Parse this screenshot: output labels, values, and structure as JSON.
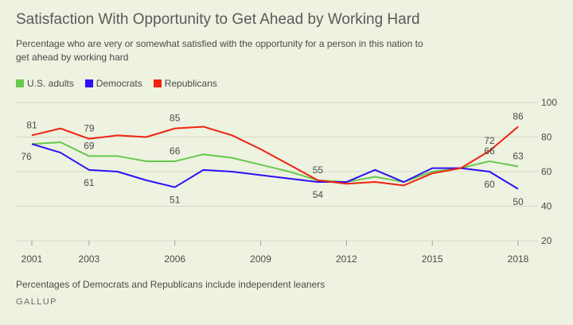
{
  "title": "Satisfaction With Opportunity to Get Ahead by Working Hard",
  "subtitle": "Percentage who are very or somewhat satisfied with the opportunity for a person in this nation to get ahead by working hard",
  "footnote": "Percentages of Democrats and Republicans include independent leaners",
  "source": "GALLUP",
  "colors": {
    "us_adults": "#67c84e",
    "democrats": "#2d10f5",
    "republicans": "#ee2410",
    "grid": "#d6d9c8",
    "text": "#4b4b4b"
  },
  "chart_data": {
    "type": "line",
    "title": "Satisfaction With Opportunity to Get Ahead by Working Hard",
    "xlabel": "",
    "ylabel": "",
    "x": [
      2001,
      2002,
      2003,
      2004,
      2005,
      2006,
      2007,
      2008,
      2009,
      2010,
      2011,
      2012,
      2013,
      2014,
      2015,
      2016,
      2017,
      2018
    ],
    "x_ticks": [
      2001,
      2003,
      2006,
      2009,
      2012,
      2015,
      2018
    ],
    "y_ticks": [
      20,
      40,
      60,
      80,
      100
    ],
    "ylim": [
      20,
      100
    ],
    "xlim": [
      2001,
      2018
    ],
    "grid": true,
    "legend_position": "top-left",
    "series": [
      {
        "key": "us_adults",
        "name": "U.S. adults",
        "color": "#67c84e",
        "values": [
          76,
          77,
          69,
          69,
          66,
          66,
          70,
          68,
          64,
          60,
          55,
          54,
          57,
          54,
          60,
          62,
          66,
          63
        ]
      },
      {
        "key": "democrats",
        "name": "Democrats",
        "color": "#2d10f5",
        "values": [
          76,
          71,
          61,
          60,
          55,
          51,
          61,
          60,
          58,
          56,
          54,
          54,
          61,
          54,
          62,
          62,
          60,
          50
        ]
      },
      {
        "key": "republicans",
        "name": "Republicans",
        "color": "#ee2410",
        "values": [
          81,
          85,
          79,
          81,
          80,
          85,
          86,
          81,
          73,
          64,
          55,
          53,
          54,
          52,
          59,
          62,
          72,
          86
        ]
      }
    ],
    "annotations": [
      {
        "label": "81",
        "x": 2001,
        "series": "republicans",
        "place": "above"
      },
      {
        "label": "76",
        "x": 2001,
        "series": "us_adults",
        "place": "below-left"
      },
      {
        "label": "79",
        "x": 2003,
        "series": "republicans",
        "place": "above"
      },
      {
        "label": "69",
        "x": 2003,
        "series": "us_adults",
        "place": "above"
      },
      {
        "label": "61",
        "x": 2003,
        "series": "democrats",
        "place": "below"
      },
      {
        "label": "85",
        "x": 2006,
        "series": "republicans",
        "place": "above"
      },
      {
        "label": "66",
        "x": 2006,
        "series": "us_adults",
        "place": "above"
      },
      {
        "label": "51",
        "x": 2006,
        "series": "democrats",
        "place": "below"
      },
      {
        "label": "55",
        "x": 2011,
        "series": "republicans",
        "place": "above"
      },
      {
        "label": "54",
        "x": 2011,
        "series": "democrats",
        "place": "below"
      },
      {
        "label": "72",
        "x": 2017,
        "series": "republicans",
        "place": "above"
      },
      {
        "label": "66",
        "x": 2017,
        "series": "us_adults",
        "place": "above"
      },
      {
        "label": "60",
        "x": 2017,
        "series": "democrats",
        "place": "below"
      },
      {
        "label": "86",
        "x": 2018,
        "series": "republicans",
        "place": "above"
      },
      {
        "label": "63",
        "x": 2018,
        "series": "us_adults",
        "place": "above"
      },
      {
        "label": "50",
        "x": 2018,
        "series": "democrats",
        "place": "below"
      }
    ]
  },
  "legend": [
    {
      "label": "U.S. adults",
      "color": "#67c84e"
    },
    {
      "label": "Democrats",
      "color": "#2d10f5"
    },
    {
      "label": "Republicans",
      "color": "#ee2410"
    }
  ]
}
